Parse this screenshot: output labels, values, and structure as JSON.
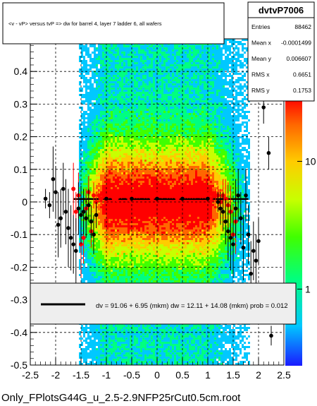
{
  "title": "<v - vP>       versus  tvP =>  dw for barrel 4, layer 7 ladder 6, all wafers",
  "footer": "Only_FPlotsG44G_u_2.5-2.9NFP25rCut0.5cm.root",
  "stats": {
    "name": "dvtvP7006",
    "rows": [
      {
        "label": "Entries",
        "value": "88462"
      },
      {
        "label": "Mean x",
        "value": "-0.0001499"
      },
      {
        "label": "Mean y",
        "value": "0.006607"
      },
      {
        "label": "RMS x",
        "value": "0.6651"
      },
      {
        "label": "RMS y",
        "value": "0.1753"
      }
    ]
  },
  "fit_text": "dv =    91.06 +  6.95 (mkm) dw =    12.11 + 14.08 (mkm) prob = 0.012",
  "colors": {
    "frame": "#000000",
    "legend_bg": "#eeeeee",
    "profile_red": "#ff0000",
    "profile_black": "#000000",
    "fit_line": "#000000",
    "palette": [
      "#1a1aff",
      "#00c8ff",
      "#00ff80",
      "#40ff00",
      "#c8ff00",
      "#ffcc00",
      "#ff6600",
      "#ff0000"
    ]
  },
  "chart_data": {
    "type": "heatmap",
    "xlim": [
      -2.5,
      2.5
    ],
    "ylim": [
      -0.5,
      0.5
    ],
    "x_ticks": [
      -2.5,
      -2,
      -1.5,
      -1,
      -0.5,
      0,
      0.5,
      1,
      1.5,
      2,
      2.5
    ],
    "x_tick_labels": [
      "-2.5",
      "-2",
      "-1.5",
      "-1",
      "-0.5",
      "0",
      "0.5",
      "1",
      "1.5",
      "2",
      "2.5"
    ],
    "y_ticks": [
      -0.5,
      -0.4,
      -0.3,
      -0.2,
      -0.1,
      0,
      0.1,
      0.2,
      0.3,
      0.4
    ],
    "y_tick_labels": [
      "-0.5",
      "-0.4",
      "-0.3",
      "-0.2",
      "-0.1",
      "0",
      "0.1",
      "0.2",
      "0.3",
      "0.4"
    ],
    "grid": true,
    "colorbar": {
      "scale": "log",
      "labels": [
        {
          "value": 10,
          "text": "10"
        },
        {
          "value": 1,
          "text": "1"
        }
      ]
    },
    "density": {
      "x_range": [
        -1.55,
        1.85
      ],
      "core_x_range": [
        -1.0,
        1.0
      ],
      "y_center": 0.0
    },
    "profile_red": {
      "x": [
        -1.65,
        -1.6,
        -1.55,
        -1.5,
        -1.45,
        -1.4,
        -1.35,
        -1.3,
        -1.25,
        -1.2,
        -1.15,
        -1.1,
        -1.05,
        -1.0,
        -0.95,
        -0.9,
        -0.85,
        -0.8,
        -0.75,
        -0.7,
        -0.65,
        -0.6,
        -0.55,
        -0.5,
        -0.45,
        -0.4,
        -0.35,
        -0.3,
        -0.25,
        -0.2,
        -0.15,
        -0.1,
        -0.05,
        0.0,
        0.05,
        0.1,
        0.15,
        0.2,
        0.25,
        0.3,
        0.35,
        0.4,
        0.45,
        0.5,
        0.55,
        0.6,
        0.65,
        0.7,
        0.75,
        0.8,
        0.85,
        0.9,
        0.95,
        1.0,
        1.05,
        1.1,
        1.15,
        1.2,
        1.25,
        1.3,
        1.35,
        1.4,
        1.45,
        1.5,
        1.55
      ],
      "y": [
        0.04,
        -0.03,
        0.02,
        -0.13,
        -0.11,
        -0.02,
        0.03,
        -0.09,
        0.02,
        0.0,
        0.02,
        0.01,
        0.02,
        0.01,
        0.02,
        0.02,
        0.01,
        0.01,
        0.02,
        0.02,
        0.03,
        0.02,
        0.01,
        0.02,
        0.02,
        0.02,
        0.02,
        0.03,
        0.02,
        0.02,
        0.02,
        0.01,
        0.02,
        0.02,
        0.03,
        0.02,
        0.03,
        0.02,
        0.02,
        0.02,
        0.02,
        0.01,
        0.02,
        0.02,
        0.02,
        0.02,
        0.02,
        0.02,
        0.02,
        0.03,
        0.02,
        0.02,
        0.02,
        0.02,
        0.01,
        0.02,
        0.02,
        0.02,
        0.0,
        0.02,
        0.01,
        -0.01,
        -0.03,
        -0.1,
        -0.06
      ],
      "err": [
        0.08,
        0.06,
        0.07,
        0.1,
        0.08,
        0.06,
        0.05,
        0.05,
        0.04,
        0.03,
        0.02,
        0.02,
        0.01,
        0.01,
        0.01,
        0.01,
        0.01,
        0.01,
        0.01,
        0.01,
        0.01,
        0.01,
        0.01,
        0.01,
        0.01,
        0.01,
        0.01,
        0.01,
        0.01,
        0.01,
        0.01,
        0.01,
        0.01,
        0.01,
        0.01,
        0.01,
        0.01,
        0.01,
        0.01,
        0.01,
        0.01,
        0.01,
        0.01,
        0.01,
        0.01,
        0.01,
        0.01,
        0.01,
        0.01,
        0.01,
        0.01,
        0.01,
        0.01,
        0.01,
        0.01,
        0.02,
        0.02,
        0.03,
        0.04,
        0.05,
        0.06,
        0.07,
        0.08,
        0.09,
        0.1
      ]
    },
    "profile_black": {
      "x": [
        -2.2,
        -2.12,
        -2.05,
        -2.0,
        -1.95,
        -1.9,
        -1.85,
        -1.8,
        -1.75,
        -1.7,
        -1.65,
        -1.6,
        -1.55,
        -1.5,
        -1.45,
        -1.4,
        -1.35,
        -1.3,
        -1.25,
        -1.2,
        -1.0,
        -0.5,
        0.0,
        0.5,
        1.0,
        1.2,
        1.25,
        1.3,
        1.35,
        1.4,
        1.45,
        1.5,
        1.55,
        1.6,
        1.65,
        1.7,
        1.75,
        1.8,
        1.85,
        1.9,
        1.95,
        2.0,
        2.1,
        2.2,
        2.25
      ],
      "y": [
        0.01,
        -0.01,
        0.07,
        0.03,
        -0.07,
        -0.05,
        0.04,
        -0.03,
        -0.08,
        -0.11,
        -0.13,
        -0.15,
        -0.02,
        -0.04,
        -0.03,
        -0.05,
        -0.01,
        -0.06,
        -0.1,
        -0.04,
        0.01,
        0.01,
        0.01,
        0.01,
        0.01,
        0.0,
        -0.02,
        -0.03,
        -0.06,
        -0.09,
        -0.11,
        -0.13,
        -0.02,
        0.02,
        -0.05,
        -0.14,
        0.02,
        -0.1,
        -0.22,
        -0.15,
        -0.18,
        -0.12,
        0.29,
        0.15,
        -0.41
      ],
      "err": [
        0.03,
        0.04,
        0.1,
        0.08,
        0.1,
        0.09,
        0.08,
        0.1,
        0.12,
        0.1,
        0.09,
        0.1,
        0.08,
        0.09,
        0.07,
        0.06,
        0.05,
        0.05,
        0.06,
        0.04,
        0.0,
        0.0,
        0.0,
        0.0,
        0.0,
        0.03,
        0.05,
        0.06,
        0.07,
        0.09,
        0.1,
        0.1,
        0.09,
        0.08,
        0.08,
        0.1,
        0.08,
        0.09,
        0.1,
        0.09,
        0.08,
        0.07,
        0.05,
        0.05,
        0.03
      ]
    },
    "fit": {
      "x_range": [
        -1.65,
        1.8
      ],
      "y": 0.009
    }
  }
}
